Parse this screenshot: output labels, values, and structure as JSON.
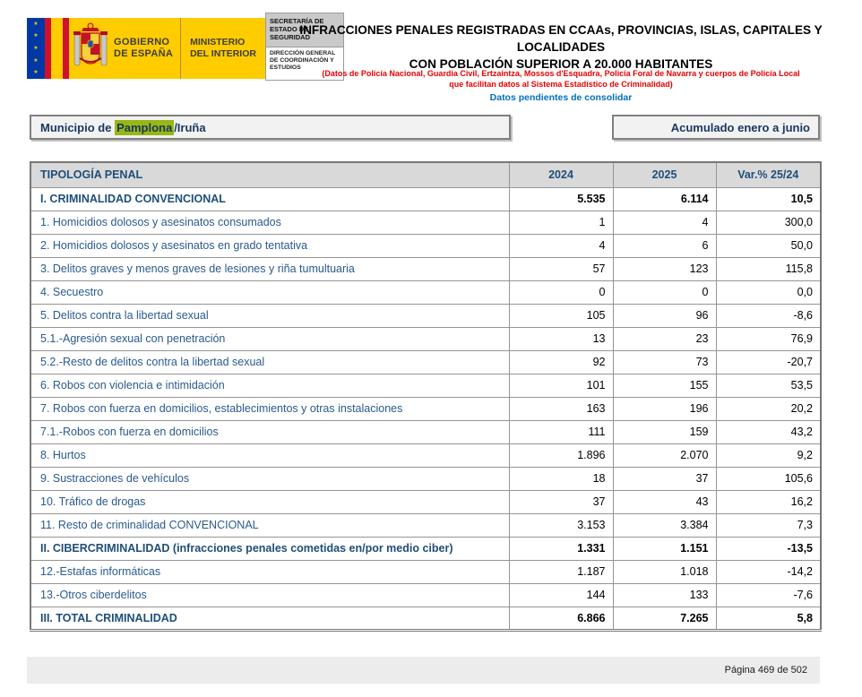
{
  "header": {
    "logo": {
      "gobierno_line1": "GOBIERNO",
      "gobierno_line2": "DE ESPAÑA",
      "ministerio_line1": "MINISTERIO",
      "ministerio_line2": "DEL INTERIOR",
      "secretaria": "SECRETARÍA DE ESTADO DE SEGURIDAD",
      "direccion": "DIRECCIÓN GENERAL DE COORDINACIÓN Y ESTUDIOS"
    },
    "title_line1": "INFRACCIONES PENALES REGISTRADAS EN CCAAs, PROVINCIAS, ISLAS, CAPITALES Y LOCALIDADES",
    "title_line2": "CON POBLACIÓN SUPERIOR A 20.000 HABITANTES",
    "subtitle_red_line1": "(Datos de Policía Nacional, Guardia Civil, Ertzaintza, Mossos d'Esquadra, Policía Foral de Navarra y cuerpos de Policía Local",
    "subtitle_red_line2": "que facilitan datos al Sistema Estadístico de Criminalidad)",
    "subtitle_blue": "Datos pendientes de consolidar"
  },
  "filters": {
    "municipio_prefix": "Municipio de ",
    "municipio_highlight": "Pamplona",
    "municipio_suffix": "/Iruña",
    "period": "Acumulado enero a junio"
  },
  "table": {
    "columns": [
      "TIPOLOGÍA PENAL",
      "2024",
      "2025",
      "Var.% 25/24"
    ],
    "rows": [
      {
        "label": "I. CRIMINALIDAD CONVENCIONAL",
        "v2024": "5.535",
        "v2025": "6.114",
        "var": "10,5",
        "bold": true
      },
      {
        "label": "1. Homicidios dolosos y asesinatos consumados",
        "v2024": "1",
        "v2025": "4",
        "var": "300,0",
        "bold": false
      },
      {
        "label": "2. Homicidios dolosos y asesinatos en grado tentativa",
        "v2024": "4",
        "v2025": "6",
        "var": "50,0",
        "bold": false
      },
      {
        "label": "3. Delitos graves y menos graves de lesiones y riña tumultuaria",
        "v2024": "57",
        "v2025": "123",
        "var": "115,8",
        "bold": false
      },
      {
        "label": "4. Secuestro",
        "v2024": "0",
        "v2025": "0",
        "var": "0,0",
        "bold": false
      },
      {
        "label": "5. Delitos contra la libertad sexual",
        "v2024": "105",
        "v2025": "96",
        "var": "-8,6",
        "bold": false
      },
      {
        "label": "5.1.-Agresión sexual con penetración",
        "v2024": "13",
        "v2025": "23",
        "var": "76,9",
        "bold": false
      },
      {
        "label": "5.2.-Resto de delitos contra la libertad sexual",
        "v2024": "92",
        "v2025": "73",
        "var": "-20,7",
        "bold": false
      },
      {
        "label": "6. Robos con violencia e intimidación",
        "v2024": "101",
        "v2025": "155",
        "var": "53,5",
        "bold": false
      },
      {
        "label": "7. Robos con fuerza en domicilios, establecimientos y otras instalaciones",
        "v2024": "163",
        "v2025": "196",
        "var": "20,2",
        "bold": false
      },
      {
        "label": "7.1.-Robos con fuerza en domicilios",
        "v2024": "111",
        "v2025": "159",
        "var": "43,2",
        "bold": false
      },
      {
        "label": "8. Hurtos",
        "v2024": "1.896",
        "v2025": "2.070",
        "var": "9,2",
        "bold": false
      },
      {
        "label": "9. Sustracciones de vehículos",
        "v2024": "18",
        "v2025": "37",
        "var": "105,6",
        "bold": false
      },
      {
        "label": "10. Tráfico de drogas",
        "v2024": "37",
        "v2025": "43",
        "var": "16,2",
        "bold": false
      },
      {
        "label": "11. Resto de criminalidad CONVENCIONAL",
        "v2024": "3.153",
        "v2025": "3.384",
        "var": "7,3",
        "bold": false
      },
      {
        "label": "II. CIBERCRIMINALIDAD (infracciones penales cometidas en/por medio ciber)",
        "v2024": "1.331",
        "v2025": "1.151",
        "var": "-13,5",
        "bold": true
      },
      {
        "label": "12.-Estafas informáticas",
        "v2024": "1.187",
        "v2025": "1.018",
        "var": "-14,2",
        "bold": false
      },
      {
        "label": "13.-Otros ciberdelitos",
        "v2024": "144",
        "v2025": "133",
        "var": "-7,6",
        "bold": false
      },
      {
        "label": "III. TOTAL CRIMINALIDAD",
        "v2024": "6.866",
        "v2025": "7.265",
        "var": "5,8",
        "bold": true
      }
    ]
  },
  "footer": {
    "page_text": "Página 469 de 502"
  },
  "colors": {
    "dark_blue": "#1f4e79",
    "row_blue": "#2a5a8e",
    "red_note": "#e80000",
    "blue_note": "#0070c0",
    "highlight_green": "#98b716",
    "header_gray": "#d9d9d9",
    "box_gray": "#f2f2f2",
    "footer_gray": "#ececec",
    "flag_blue": "#0039a6",
    "flag_red": "#d0112b",
    "flag_yellow": "#ffcc00"
  }
}
